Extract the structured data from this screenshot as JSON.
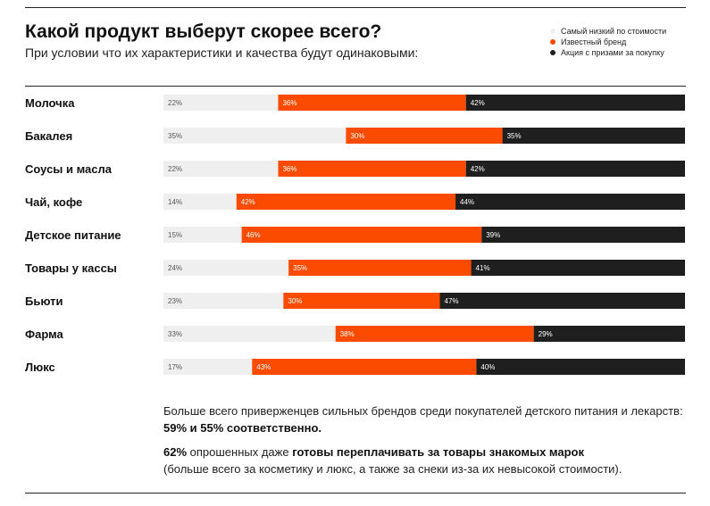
{
  "header": {
    "title": "Какой продукт выберут скорее всего?",
    "subtitle": "При условии что их характеристики и качества будут одинаковыми:"
  },
  "legend": [
    {
      "label": "Самый низкий по стоимости",
      "color": "#efefef"
    },
    {
      "label": "Известный бренд",
      "color": "#fa4b00"
    },
    {
      "label": "Акция с призами за покупку",
      "color": "#1f1f1f"
    }
  ],
  "chart_data": {
    "type": "bar",
    "stacked": true,
    "orientation": "horizontal",
    "categories": [
      "Молочка",
      "Бакалея",
      "Соусы и масла",
      "Чай, кофе",
      "Детское питание",
      "Товары у кассы",
      "Бьюти",
      "Фарма",
      "Люкс"
    ],
    "series": [
      {
        "name": "Самый низкий по стоимости",
        "color": "#efefef",
        "label_color": "#555555",
        "values": [
          22,
          35,
          22,
          14,
          15,
          24,
          23,
          33,
          17
        ]
      },
      {
        "name": "Известный бренд",
        "color": "#fa4b00",
        "label_color": "#ffffff",
        "values": [
          36,
          30,
          36,
          42,
          46,
          35,
          30,
          38,
          43
        ]
      },
      {
        "name": "Акция с призами за покупку",
        "color": "#1f1f1f",
        "label_color": "#ffffff",
        "values": [
          42,
          35,
          42,
          44,
          39,
          41,
          47,
          29,
          40
        ]
      }
    ],
    "value_suffix": "%",
    "xlim": [
      0,
      100
    ]
  },
  "notes": {
    "p1_text": "Больше всего приверженцев сильных брендов среди покупателей детского питания и лекарств: ",
    "p1_bold": "59% и 55% соответственно.",
    "p2_bold1": "62%",
    "p2_text1": " опрошенных даже ",
    "p2_bold2": "готовы переплачивать за товары знакомых марок",
    "p2_text2": "(больше всего за косметику и люкс, а также за снеки из-за их невысокой стоимости)."
  }
}
